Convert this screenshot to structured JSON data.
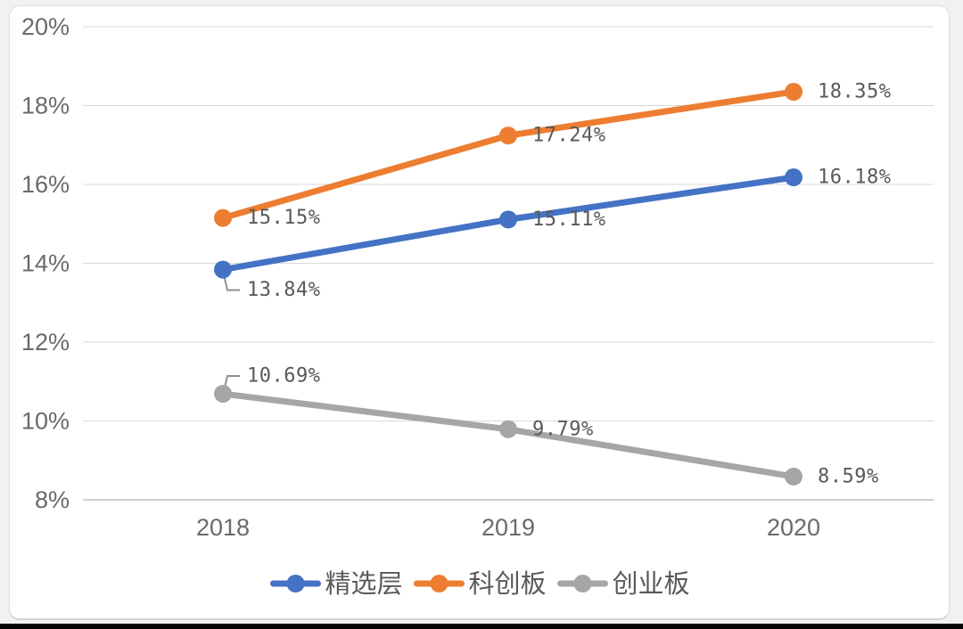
{
  "chart_data": {
    "type": "line",
    "categories": [
      "2018",
      "2019",
      "2020"
    ],
    "series": [
      {
        "name": "精选层",
        "color": "#4472C4",
        "values": [
          13.84,
          15.11,
          16.18
        ],
        "data_labels": [
          "13.84%",
          "15.11%",
          "16.18%"
        ],
        "label_placements": [
          "below-leader",
          "right",
          "right"
        ]
      },
      {
        "name": "科创板",
        "color": "#ED7D31",
        "values": [
          15.15,
          17.24,
          18.35
        ],
        "data_labels": [
          "15.15%",
          "17.24%",
          "18.35%"
        ],
        "label_placements": [
          "right",
          "right",
          "right"
        ]
      },
      {
        "name": "创业板",
        "color": "#A6A6A6",
        "values": [
          10.69,
          9.79,
          8.59
        ],
        "data_labels": [
          "10.69%",
          "9.79%",
          "8.59%"
        ],
        "label_placements": [
          "above-leader",
          "right",
          "right"
        ]
      }
    ],
    "title": "",
    "xlabel": "",
    "ylabel": "",
    "y_axis": {
      "min": 8,
      "max": 20,
      "step": 2,
      "tick_labels": [
        "8%",
        "10%",
        "12%",
        "14%",
        "16%",
        "18%",
        "20%"
      ]
    },
    "grid": true,
    "legend": {
      "position": "bottom",
      "entries": [
        "精选层",
        "科创板",
        "创业板"
      ]
    }
  },
  "colors": {
    "gridline": "#d9d9d9",
    "axis_line": "#c0c0c0",
    "tick_text": "#6a6a6a",
    "x_label_text": "#6a6a6a",
    "data_label_text": "#595959",
    "legend_text": "#595959",
    "leader_line": "#8f8f8f",
    "card_background": "#ffffff",
    "card_border": "#dcdcdc",
    "bottom_bar": "#050505"
  }
}
